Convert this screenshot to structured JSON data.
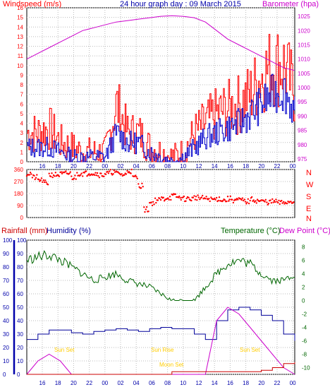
{
  "colors": {
    "wind": "#ff0000",
    "gust": "#ff0000",
    "windavg": "#0000cc",
    "baro": "#cc00cc",
    "dir": "#ff0000",
    "rain": "#cc0000",
    "humidity": "#000099",
    "temp": "#006600",
    "dew": "#cc00cc",
    "sunmoon": "#ffcc00",
    "grid": "#000000",
    "axisblue": "#0000aa"
  },
  "top": {
    "title": "24 hour graph day : 09 March 2015",
    "left_label": "Windspeed (m/s)",
    "right_label": "Barometer (hpa)"
  },
  "mid": {
    "compass": [
      "N",
      "W",
      "S",
      "E",
      "N"
    ]
  },
  "bottom": {
    "rain_label": "Rainfall (mm)",
    "hum_label": "Humidity (%)",
    "temp_label": "Temperature (°C)",
    "dew_label": "Dew Point (°C)",
    "annotations": [
      {
        "label": "Sun Set",
        "hour": 18.2,
        "value": 6
      },
      {
        "label": "Sun Rise",
        "hour": 6.6,
        "value": 6
      },
      {
        "label": "Moon Set",
        "hour": 8.8,
        "value": 2
      },
      {
        "label": "Sun Set",
        "hour": 18.2,
        "value": 6
      }
    ]
  },
  "chart_data": [
    {
      "type": "line",
      "title": "24 hour graph day : 09 March 2015",
      "xlabel": "",
      "ylabel": "Windspeed (m/s)",
      "y2label": "Barometer (hpa)",
      "x_ticks": [
        "16",
        "18",
        "20",
        "22",
        "00",
        "02",
        "04",
        "06",
        "08",
        "10",
        "12",
        "14",
        "16",
        "18",
        "20",
        "22",
        "00"
      ],
      "y_ticks": [
        0,
        1,
        2,
        3,
        4,
        5,
        6,
        7,
        8,
        9,
        10,
        11,
        12,
        13,
        14,
        15,
        16
      ],
      "y2_ticks": [
        975,
        980,
        985,
        990,
        995,
        1000,
        1005,
        1010,
        1015,
        1020,
        1025
      ],
      "ylim": [
        0,
        16
      ],
      "y2lim": [
        974,
        1028
      ],
      "x": [
        0,
        1,
        2,
        3,
        4,
        5,
        6,
        7,
        8,
        9,
        10,
        11,
        12,
        13,
        14,
        15,
        16,
        17,
        18,
        19,
        20,
        21,
        22,
        23,
        24
      ],
      "series": [
        {
          "name": "Windspeed (m/s)",
          "values": [
            3,
            3,
            3.5,
            2,
            1.5,
            1,
            1,
            1,
            6,
            3,
            3,
            1.5,
            1,
            0.5,
            1,
            3,
            4,
            5,
            5.5,
            6,
            7,
            9,
            10,
            10,
            7
          ]
        },
        {
          "name": "Windspeed (m/s)",
          "values": [
            1.5,
            1.5,
            1.5,
            1,
            0.5,
            0.5,
            0.5,
            0.5,
            3,
            2,
            2,
            1,
            0.5,
            0,
            0.5,
            1.5,
            2.5,
            3,
            3.5,
            4,
            5,
            6,
            7,
            7.5,
            5
          ]
        },
        {
          "name": "Barometer (hpa)",
          "values": [
            1010,
            1012,
            1014,
            1016,
            1018,
            1020,
            1021,
            1022,
            1023,
            1023.5,
            1024,
            1024.5,
            1025,
            1025.2,
            1025,
            1024.5,
            1023,
            1020,
            1017,
            1015,
            1013,
            1011,
            1009,
            1007,
            1006
          ]
        }
      ]
    },
    {
      "type": "scatter",
      "title": "",
      "xlabel": "",
      "ylabel": "",
      "y_ticks": [
        0,
        90,
        180,
        270,
        360
      ],
      "ylim": [
        0,
        360
      ],
      "x": [
        0,
        0.5,
        1,
        1.5,
        2,
        2.5,
        3,
        3.5,
        4,
        4.5,
        5,
        5.5,
        6,
        6.5,
        7,
        7.5,
        8,
        8.5,
        9,
        9.5,
        10,
        10.5,
        11,
        11.5,
        12,
        12.5,
        13,
        13.5,
        14,
        14.5,
        15,
        15.5,
        16,
        16.5,
        17,
        17.5,
        18,
        18.5,
        19,
        19.5,
        20,
        20.5,
        21,
        21.5,
        22,
        22.5,
        23,
        23.5,
        24
      ],
      "series": [
        {
          "name": "",
          "values": [
            330,
            300,
            280,
            260,
            320,
            320,
            325,
            330,
            300,
            330,
            330,
            335,
            330,
            320,
            330,
            340,
            330,
            320,
            350,
            300,
            240,
            60,
            110,
            130,
            140,
            150,
            160,
            150,
            140,
            140,
            150,
            145,
            140,
            135,
            140,
            130,
            140,
            130,
            130,
            120,
            135,
            125,
            120,
            115,
            120,
            110,
            115,
            120,
            130
          ]
        }
      ]
    },
    {
      "type": "line",
      "title": "",
      "xlabel": "",
      "ylabel": "Rainfall (mm)",
      "y2label": "Temperature (°C)",
      "x_ticks": [
        "16",
        "18",
        "20",
        "22",
        "00",
        "02",
        "04",
        "06",
        "08",
        "10",
        "12",
        "14",
        "16",
        "18",
        "20",
        "22",
        "00"
      ],
      "y_ticks": [
        0,
        10,
        20,
        30,
        40,
        50,
        60,
        70,
        80,
        90,
        100
      ],
      "y2_ticks": [
        -10,
        -8,
        -6,
        -4,
        -2,
        0,
        2,
        4,
        6,
        8
      ],
      "ylim": [
        0,
        100
      ],
      "y2lim": [
        -11,
        9
      ],
      "x": [
        0,
        1,
        2,
        3,
        4,
        5,
        6,
        7,
        8,
        9,
        10,
        11,
        12,
        13,
        14,
        15,
        16,
        17,
        18,
        19,
        20,
        21,
        22,
        23,
        24
      ],
      "series": [
        {
          "name": "Humidity (%)",
          "values": [
            26,
            30,
            33,
            33,
            31,
            30,
            32,
            33,
            34,
            33,
            32,
            34,
            35,
            34,
            34,
            30,
            26,
            40,
            48,
            50,
            48,
            44,
            40,
            30,
            25
          ]
        },
        {
          "name": "Temperature (°C)",
          "values": [
            6,
            6.5,
            6.8,
            6,
            5,
            4,
            3,
            3.5,
            4,
            3,
            2.5,
            2,
            1,
            0,
            0,
            0,
            2,
            4,
            5.5,
            6,
            5.5,
            4,
            3,
            3,
            4
          ]
        },
        {
          "name": "Dew Point (°C)",
          "values": [
            -11,
            -9,
            -8,
            -9,
            -11,
            -11,
            -11,
            -11,
            -11,
            -11,
            -11,
            -11,
            -11,
            -11,
            -11,
            -11,
            -11,
            -3,
            -1,
            -2,
            -4,
            -6,
            -8,
            -10,
            -11
          ]
        },
        {
          "name": "Rainfall (mm)",
          "values": [
            0,
            0,
            0,
            0,
            0,
            0,
            0,
            0,
            0,
            0,
            0,
            0,
            0,
            2,
            2,
            2,
            2,
            2,
            2,
            2,
            2,
            3,
            5,
            8,
            9
          ]
        }
      ]
    }
  ]
}
